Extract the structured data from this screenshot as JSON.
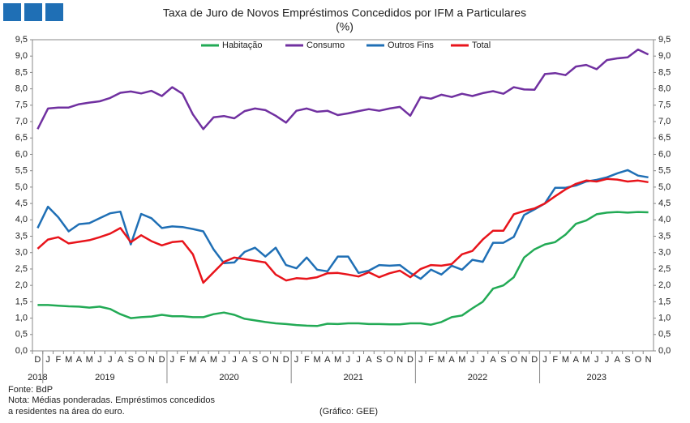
{
  "chart_data": {
    "type": "line",
    "title": "Taxa de Juro de Novos Empréstimos Concedidos por IFM a Particulares",
    "subtitle": "(%)",
    "categories": [
      "D",
      "J",
      "F",
      "M",
      "A",
      "M",
      "J",
      "J",
      "A",
      "S",
      "O",
      "N",
      "D",
      "J",
      "F",
      "M",
      "A",
      "M",
      "J",
      "J",
      "A",
      "S",
      "O",
      "N",
      "D",
      "J",
      "F",
      "M",
      "A",
      "M",
      "J",
      "J",
      "A",
      "S",
      "O",
      "N",
      "D",
      "J",
      "F",
      "M",
      "A",
      "M",
      "J",
      "J",
      "A",
      "S",
      "O",
      "N",
      "D",
      "J",
      "F",
      "M",
      "A",
      "M",
      "J",
      "J",
      "A",
      "S",
      "O",
      "N"
    ],
    "years": [
      "2018",
      "2019",
      "2020",
      "2021",
      "2022",
      "2023"
    ],
    "series": [
      {
        "name": "Habitação",
        "color": "#22aa55",
        "values": [
          1.4,
          1.4,
          1.38,
          1.36,
          1.35,
          1.32,
          1.35,
          1.28,
          1.12,
          1.0,
          1.03,
          1.05,
          1.1,
          1.06,
          1.06,
          1.03,
          1.03,
          1.12,
          1.17,
          1.1,
          0.98,
          0.93,
          0.88,
          0.84,
          0.82,
          0.79,
          0.77,
          0.76,
          0.83,
          0.82,
          0.84,
          0.84,
          0.82,
          0.82,
          0.81,
          0.81,
          0.84,
          0.84,
          0.8,
          0.88,
          1.03,
          1.08,
          1.3,
          1.5,
          1.9,
          2.0,
          2.25,
          2.85,
          3.1,
          3.25,
          3.32,
          3.55,
          3.88,
          3.98,
          4.17,
          4.22,
          4.24,
          4.22,
          4.24,
          4.23
        ]
      },
      {
        "name": "Consumo",
        "color": "#7030a0",
        "values": [
          6.77,
          7.4,
          7.43,
          7.43,
          7.53,
          7.58,
          7.62,
          7.72,
          7.88,
          7.92,
          7.86,
          7.94,
          7.78,
          8.05,
          7.85,
          7.22,
          6.77,
          7.13,
          7.17,
          7.1,
          7.32,
          7.4,
          7.35,
          7.18,
          6.97,
          7.33,
          7.4,
          7.3,
          7.33,
          7.2,
          7.25,
          7.32,
          7.38,
          7.33,
          7.4,
          7.45,
          7.18,
          7.75,
          7.7,
          7.82,
          7.75,
          7.85,
          7.78,
          7.87,
          7.93,
          7.85,
          8.05,
          7.98,
          7.97,
          8.45,
          8.48,
          8.42,
          8.68,
          8.73,
          8.6,
          8.88,
          8.93,
          8.96,
          9.2,
          9.05
        ]
      },
      {
        "name": "Outros Fins",
        "color": "#1f6fb5",
        "values": [
          3.75,
          4.4,
          4.08,
          3.65,
          3.87,
          3.9,
          4.05,
          4.2,
          4.25,
          3.25,
          4.18,
          4.05,
          3.75,
          3.8,
          3.78,
          3.72,
          3.65,
          3.1,
          2.68,
          2.7,
          3.02,
          3.15,
          2.88,
          3.15,
          2.62,
          2.52,
          2.85,
          2.48,
          2.43,
          2.88,
          2.88,
          2.38,
          2.45,
          2.62,
          2.6,
          2.62,
          2.38,
          2.2,
          2.48,
          2.33,
          2.6,
          2.48,
          2.78,
          2.72,
          3.3,
          3.3,
          3.48,
          4.15,
          4.32,
          4.5,
          4.98,
          4.98,
          5.05,
          5.17,
          5.22,
          5.3,
          5.42,
          5.52,
          5.35,
          5.3
        ]
      },
      {
        "name": "Total",
        "color": "#e8141b",
        "values": [
          3.12,
          3.4,
          3.47,
          3.28,
          3.33,
          3.38,
          3.47,
          3.58,
          3.75,
          3.32,
          3.53,
          3.35,
          3.22,
          3.32,
          3.35,
          2.95,
          2.08,
          2.4,
          2.72,
          2.85,
          2.8,
          2.75,
          2.7,
          2.33,
          2.15,
          2.22,
          2.2,
          2.25,
          2.37,
          2.38,
          2.33,
          2.27,
          2.4,
          2.25,
          2.37,
          2.45,
          2.25,
          2.5,
          2.62,
          2.6,
          2.65,
          2.95,
          3.05,
          3.4,
          3.67,
          3.67,
          4.17,
          4.27,
          4.35,
          4.5,
          4.72,
          4.93,
          5.1,
          5.2,
          5.17,
          5.25,
          5.23,
          5.17,
          5.2,
          5.15
        ]
      }
    ],
    "ylim": [
      0,
      9.5
    ],
    "yticks": [
      {
        "value": 0,
        "label": "0,0"
      },
      {
        "value": 0.5,
        "label": "0,5"
      },
      {
        "value": 1,
        "label": "1,0"
      },
      {
        "value": 1.5,
        "label": "1,5"
      },
      {
        "value": 2,
        "label": "2,0"
      },
      {
        "value": 2.5,
        "label": "2,5"
      },
      {
        "value": 3,
        "label": "3,0"
      },
      {
        "value": 3.5,
        "label": "3,5"
      },
      {
        "value": 4,
        "label": "4,0"
      },
      {
        "value": 4.5,
        "label": "4,5"
      },
      {
        "value": 5,
        "label": "5,0"
      },
      {
        "value": 5.5,
        "label": "5,5"
      },
      {
        "value": 6,
        "label": "6,0"
      },
      {
        "value": 6.5,
        "label": "6,5"
      },
      {
        "value": 7,
        "label": "7,0"
      },
      {
        "value": 7.5,
        "label": "7,5"
      },
      {
        "value": 8,
        "label": "8,0"
      },
      {
        "value": 8.5,
        "label": "8,5"
      },
      {
        "value": 9,
        "label": "9,0"
      },
      {
        "value": 9.5,
        "label": "9,5"
      }
    ],
    "y2lim": [
      0,
      9.5
    ],
    "y2ticks": [
      {
        "value": 0,
        "label": "0,0"
      },
      {
        "value": 0.5,
        "label": "0,5"
      },
      {
        "value": 1,
        "label": "1,0"
      },
      {
        "value": 1.5,
        "label": "1,5"
      },
      {
        "value": 2,
        "label": "2,0"
      },
      {
        "value": 2.5,
        "label": "2,5"
      },
      {
        "value": 3,
        "label": "3,0"
      },
      {
        "value": 3.5,
        "label": "3,5"
      },
      {
        "value": 4,
        "label": "4,0"
      },
      {
        "value": 4.5,
        "label": "4,5"
      },
      {
        "value": 5,
        "label": "5,0"
      },
      {
        "value": 5.5,
        "label": "5,5"
      },
      {
        "value": 6,
        "label": "6,0"
      },
      {
        "value": 6.5,
        "label": "6,5"
      },
      {
        "value": 7,
        "label": "7,0"
      },
      {
        "value": 7.5,
        "label": "7,5"
      },
      {
        "value": 8,
        "label": "8,0"
      },
      {
        "value": 8.5,
        "label": "8,5"
      },
      {
        "value": 9,
        "label": "9,0"
      },
      {
        "value": 9.5,
        "label": "9,5"
      }
    ],
    "grid": false,
    "legend": "top",
    "source": "Fonte: BdP",
    "note_lines": [
      "Nota: Médias ponderadas. Empréstimos concedidos",
      "a residentes na área do euro."
    ],
    "credit": "(Gráfico: GEE)"
  }
}
